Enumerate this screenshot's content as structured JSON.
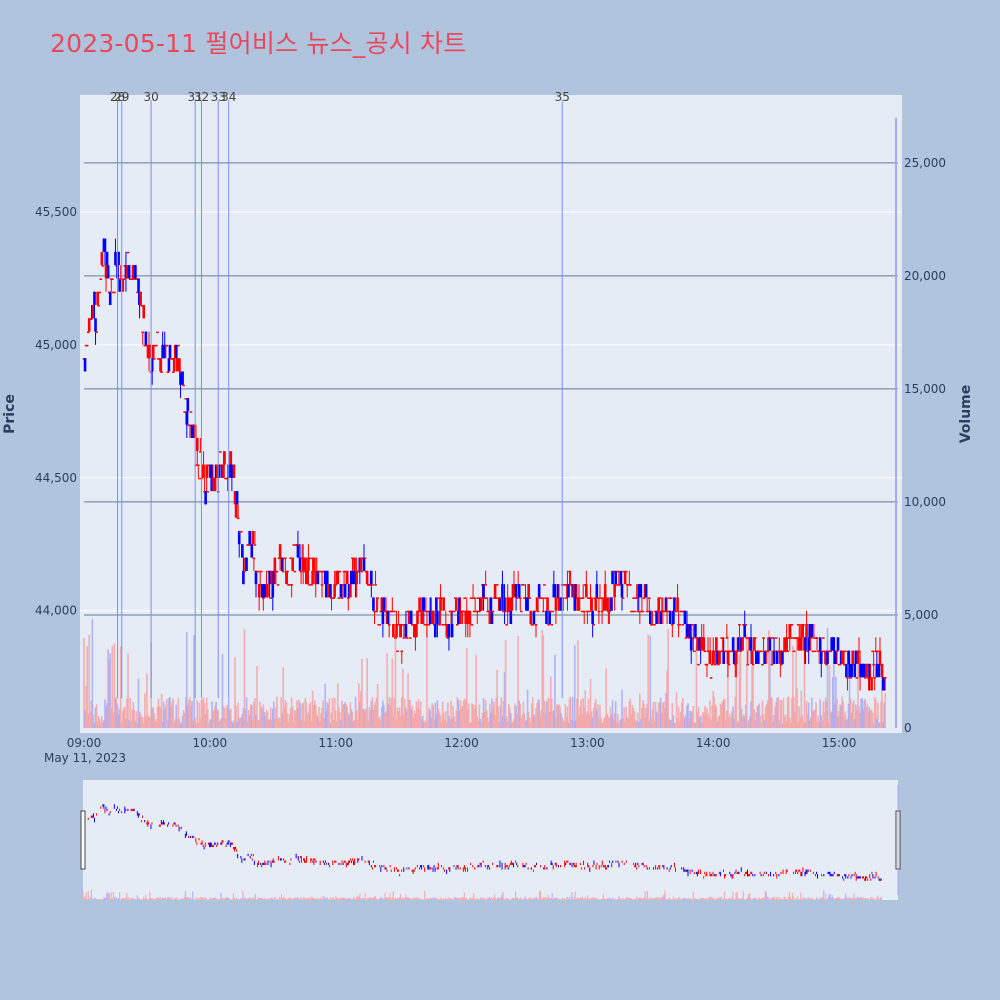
{
  "title": "2023-05-11 펄어비스 뉴스_공시 차트",
  "colors": {
    "background": "#b0c4de",
    "plot_bg": "#e5ecf6",
    "up": "#ff0000",
    "down": "#0000ff",
    "title": "#e8495a",
    "news_line": "#7a8ff0"
  },
  "chart_data": {
    "type": "candlestick",
    "date_label": "May 11, 2023",
    "y_axis_title": "Price",
    "y2_axis_title": "Volume",
    "y_ticks": [
      {
        "value": 44000,
        "label": "44,000"
      },
      {
        "value": 44500,
        "label": "44,500"
      },
      {
        "value": 45000,
        "label": "45,000"
      },
      {
        "value": 45500,
        "label": "45,500"
      }
    ],
    "y_range": [
      43540,
      45940
    ],
    "y2_ticks": [
      {
        "value": 0,
        "label": "0"
      },
      {
        "value": 5000,
        "label": "5,000"
      },
      {
        "value": 10000,
        "label": "10,000"
      },
      {
        "value": 15000,
        "label": "15,000"
      },
      {
        "value": 20000,
        "label": "20,000"
      },
      {
        "value": 25000,
        "label": "25,000"
      }
    ],
    "y2_range": [
      0,
      28000
    ],
    "x_ticks": [
      {
        "time": "09:00",
        "label": "09:00"
      },
      {
        "time": "10:00",
        "label": "10:00"
      },
      {
        "time": "11:00",
        "label": "11:00"
      },
      {
        "time": "12:00",
        "label": "12:00"
      },
      {
        "time": "13:00",
        "label": "13:00"
      },
      {
        "time": "14:00",
        "label": "14:00"
      },
      {
        "time": "15:00",
        "label": "15:00"
      }
    ],
    "x_range": [
      "09:00",
      "15:30"
    ],
    "news_markers": [
      {
        "label": "28",
        "time": "09:16"
      },
      {
        "label": "29",
        "time": "09:18"
      },
      {
        "label": "30",
        "time": "09:32"
      },
      {
        "label": "31",
        "time": "09:53"
      },
      {
        "label": "32",
        "time": "09:56"
      },
      {
        "label": "33",
        "time": "10:04"
      },
      {
        "label": "34",
        "time": "10:09"
      },
      {
        "label": "35",
        "time": "12:48"
      }
    ],
    "price_path": [
      [
        "09:00",
        44900
      ],
      [
        "09:02",
        45000
      ],
      [
        "09:04",
        45150
      ],
      [
        "09:06",
        45100
      ],
      [
        "09:08",
        45250
      ],
      [
        "09:10",
        45350
      ],
      [
        "09:12",
        45200
      ],
      [
        "09:14",
        45250
      ],
      [
        "09:16",
        45300
      ],
      [
        "09:18",
        45200
      ],
      [
        "09:20",
        45300
      ],
      [
        "09:22",
        45250
      ],
      [
        "09:24",
        45250
      ],
      [
        "09:26",
        45200
      ],
      [
        "09:28",
        45100
      ],
      [
        "09:30",
        45000
      ],
      [
        "09:32",
        44950
      ],
      [
        "09:34",
        45000
      ],
      [
        "09:36",
        44950
      ],
      [
        "09:40",
        44950
      ],
      [
        "09:44",
        44950
      ],
      [
        "09:46",
        44900
      ],
      [
        "09:48",
        44800
      ],
      [
        "09:50",
        44700
      ],
      [
        "09:52",
        44650
      ],
      [
        "09:54",
        44600
      ],
      [
        "09:56",
        44500
      ],
      [
        "09:58",
        44450
      ],
      [
        "10:00",
        44550
      ],
      [
        "10:02",
        44500
      ],
      [
        "10:04",
        44500
      ],
      [
        "10:06",
        44550
      ],
      [
        "10:08",
        44500
      ],
      [
        "10:10",
        44550
      ],
      [
        "10:12",
        44450
      ],
      [
        "10:14",
        44300
      ],
      [
        "10:16",
        44150
      ],
      [
        "10:18",
        44200
      ],
      [
        "10:20",
        44250
      ],
      [
        "10:22",
        44150
      ],
      [
        "10:24",
        44100
      ],
      [
        "10:26",
        44050
      ],
      [
        "10:30",
        44100
      ],
      [
        "10:34",
        44200
      ],
      [
        "10:38",
        44150
      ],
      [
        "10:42",
        44200
      ],
      [
        "10:46",
        44150
      ],
      [
        "10:50",
        44150
      ],
      [
        "10:54",
        44150
      ],
      [
        "10:58",
        44050
      ],
      [
        "11:02",
        44100
      ],
      [
        "11:06",
        44100
      ],
      [
        "11:10",
        44150
      ],
      [
        "11:14",
        44150
      ],
      [
        "11:18",
        44050
      ],
      [
        "11:22",
        44000
      ],
      [
        "11:26",
        43950
      ],
      [
        "11:30",
        43900
      ],
      [
        "11:34",
        43950
      ],
      [
        "11:38",
        43950
      ],
      [
        "11:42",
        44000
      ],
      [
        "11:46",
        43950
      ],
      [
        "11:50",
        44000
      ],
      [
        "11:54",
        43950
      ],
      [
        "11:58",
        44000
      ],
      [
        "12:02",
        44000
      ],
      [
        "12:06",
        44000
      ],
      [
        "12:10",
        44050
      ],
      [
        "12:14",
        44000
      ],
      [
        "12:18",
        44050
      ],
      [
        "12:22",
        44000
      ],
      [
        "12:26",
        44050
      ],
      [
        "12:30",
        44050
      ],
      [
        "12:34",
        44000
      ],
      [
        "12:38",
        44050
      ],
      [
        "12:42",
        44000
      ],
      [
        "12:46",
        44050
      ],
      [
        "12:50",
        44100
      ],
      [
        "12:54",
        44050
      ],
      [
        "12:58",
        44050
      ],
      [
        "13:02",
        44000
      ],
      [
        "13:06",
        44050
      ],
      [
        "13:10",
        44050
      ],
      [
        "13:14",
        44100
      ],
      [
        "13:18",
        44100
      ],
      [
        "13:22",
        44050
      ],
      [
        "13:26",
        44050
      ],
      [
        "13:30",
        44000
      ],
      [
        "13:34",
        44000
      ],
      [
        "13:38",
        44000
      ],
      [
        "13:42",
        44000
      ],
      [
        "13:46",
        43950
      ],
      [
        "13:50",
        43900
      ],
      [
        "13:54",
        43850
      ],
      [
        "13:58",
        43800
      ],
      [
        "14:02",
        43850
      ],
      [
        "14:06",
        43850
      ],
      [
        "14:10",
        43850
      ],
      [
        "14:14",
        43900
      ],
      [
        "14:18",
        43850
      ],
      [
        "14:22",
        43850
      ],
      [
        "14:26",
        43850
      ],
      [
        "14:30",
        43850
      ],
      [
        "14:34",
        43850
      ],
      [
        "14:38",
        43900
      ],
      [
        "14:42",
        43900
      ],
      [
        "14:46",
        43900
      ],
      [
        "14:50",
        43850
      ],
      [
        "14:54",
        43850
      ],
      [
        "14:58",
        43850
      ],
      [
        "15:02",
        43800
      ],
      [
        "15:06",
        43800
      ],
      [
        "15:10",
        43800
      ],
      [
        "15:14",
        43750
      ],
      [
        "15:18",
        43800
      ],
      [
        "15:22",
        43750
      ]
    ]
  }
}
